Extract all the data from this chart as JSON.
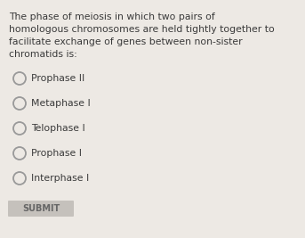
{
  "background_color": "#ede9e4",
  "question_text_lines": [
    "The phase of meiosis in which two pairs of",
    "homologous chromosomes are held tightly together to",
    "facilitate exchange of genes between non-sister",
    "chromatids is:"
  ],
  "options": [
    "Prophase II",
    "Metaphase I",
    "Telophase I",
    "Prophase I",
    "Interphase I"
  ],
  "submit_label": "SUBMIT",
  "question_fontsize": 7.8,
  "option_fontsize": 7.8,
  "text_color": "#3a3a3a",
  "circle_edge_color": "#999999",
  "submit_bg": "#c5c1bc",
  "submit_text_color": "#666666",
  "submit_fontsize": 7.0,
  "fig_width": 3.43,
  "fig_height": 2.67,
  "dpi": 100
}
